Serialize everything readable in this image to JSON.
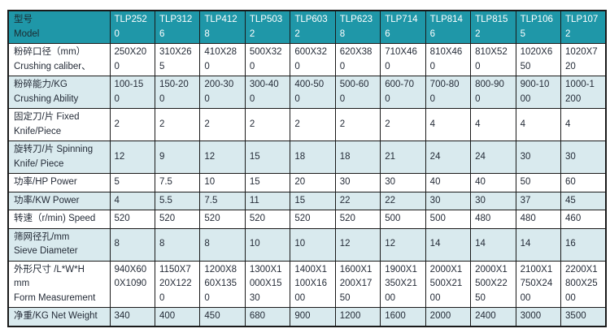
{
  "colors": {
    "header_bg": "#1F97A8",
    "stripe_bg": "#D9EAEE",
    "row_bg": "#FFFFFF",
    "border": "#1A1A1A",
    "header_label_text": "#1C2B31",
    "header_model_text": "#FFFFFF",
    "body_text": "#252C38"
  },
  "table": {
    "header": {
      "label_lines": [
        "型号",
        "Model"
      ],
      "models": [
        "TLP2520",
        "TLP3126",
        "TLP4128",
        "TLP5032",
        "TLP6032",
        "TLP6238",
        "TLP7146",
        "TLP8146",
        "TLP8152",
        "TLP1065",
        "TLP1072"
      ]
    },
    "rows": [
      {
        "id": "crushing-caliber",
        "label_lines": [
          "粉碎口径（mm）",
          "Crushing caliber、"
        ],
        "values": [
          "250X200",
          "310X265",
          "410X280",
          "500X320",
          "600X320",
          "620X380",
          "710X460",
          "810X460",
          "810X520",
          "1020X650",
          "1020X720"
        ]
      },
      {
        "id": "crushing-ability",
        "label_lines": [
          "粉碎能力/KG",
          "Crushing Ability"
        ],
        "values": [
          "100-150",
          "150-200",
          "200-300",
          "300-400",
          "400-500",
          "500-600",
          "600-700",
          "700-800",
          "800-900",
          "900-1000",
          "1000-1200"
        ]
      },
      {
        "id": "fixed-knife",
        "label_lines": [
          "固定刀/片 Fixed",
          "Knife/Piece"
        ],
        "values": [
          "2",
          "2",
          "2",
          "2",
          "2",
          "2",
          "2",
          "4",
          "4",
          "4",
          "4"
        ]
      },
      {
        "id": "spinning-knife",
        "label_lines": [
          "旋转刀/片 Spinning",
          "Knife/ Piece"
        ],
        "values": [
          "12",
          "9",
          "12",
          "15",
          "18",
          "18",
          "21",
          "24",
          "24",
          "30",
          "30"
        ]
      },
      {
        "id": "hp-power",
        "label_lines": [
          "功率/HP Power"
        ],
        "values": [
          "5",
          "7.5",
          "10",
          "15",
          "20",
          "30",
          "30",
          "40",
          "40",
          "50",
          "60"
        ]
      },
      {
        "id": "kw-power",
        "label_lines": [
          "功率/KW Power"
        ],
        "values": [
          "4",
          "5.5",
          "7.5",
          "11",
          "15",
          "22",
          "22",
          "30",
          "30",
          "37",
          "45"
        ]
      },
      {
        "id": "speed",
        "label_lines": [
          "转速（r/min) Speed"
        ],
        "values": [
          "520",
          "520",
          "520",
          "520",
          "520",
          "520",
          "500",
          "500",
          "480",
          "480",
          "460"
        ]
      },
      {
        "id": "sieve-diameter",
        "label_lines": [
          "筛网径孔/mm",
          "Sieve Diameter"
        ],
        "values": [
          "8",
          "8",
          "8",
          "10",
          "10",
          "12",
          "12",
          "14",
          "14",
          "14",
          "16"
        ]
      },
      {
        "id": "form-measurement",
        "label_lines": [
          "外形尺寸 /L*W*H",
          "mm",
          "Form Measurement"
        ],
        "values": [
          "940X600X1090",
          "1150X720X1220",
          "1200X860X1350",
          "1300X1000X1530",
          "1400X1100X1600",
          "1600X1200X1750",
          "1900X1350X2100",
          "2000X1500X2100",
          "2000X1500X2250",
          "2100X1750X2400",
          "2200X1800X2500"
        ]
      },
      {
        "id": "net-weight",
        "label_lines": [
          "净重/KG Net Weight"
        ],
        "values": [
          "340",
          "400",
          "450",
          "680",
          "900",
          "1200",
          "1600",
          "2000",
          "2400",
          "3000",
          "3500"
        ]
      }
    ]
  }
}
